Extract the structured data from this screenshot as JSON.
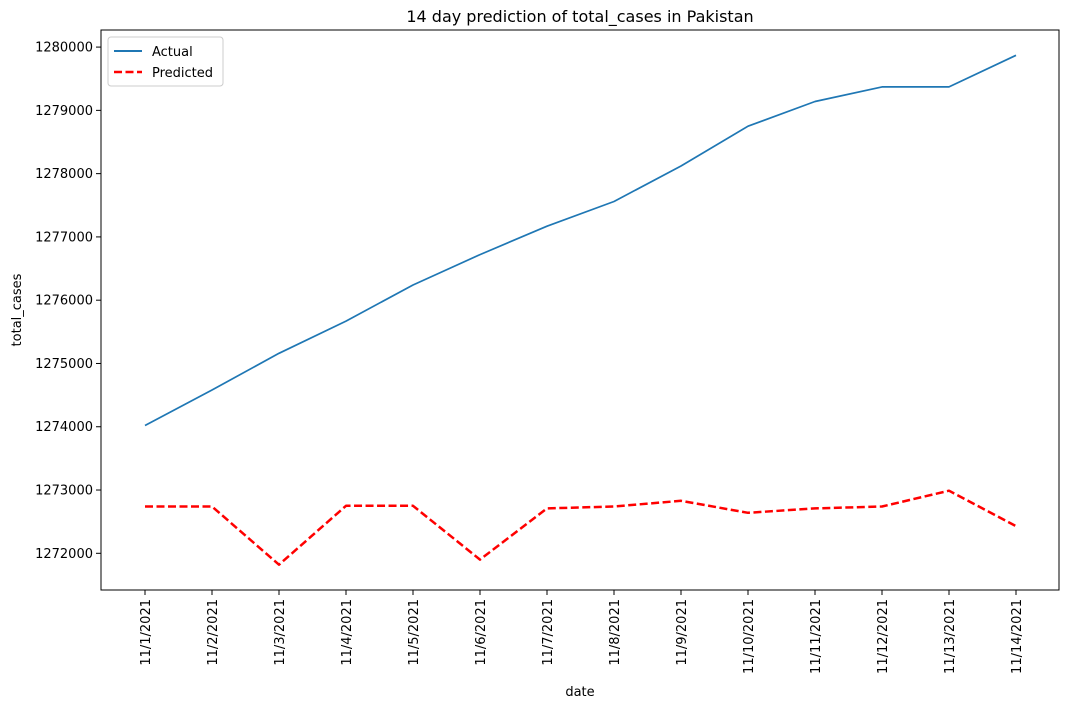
{
  "chart_data": {
    "type": "line",
    "title": "14 day prediction of total_cases in Pakistan",
    "xlabel": "date",
    "ylabel": "total_cases",
    "categories": [
      "11/1/2021",
      "11/2/2021",
      "11/3/2021",
      "11/4/2021",
      "11/5/2021",
      "11/6/2021",
      "11/7/2021",
      "11/8/2021",
      "11/9/2021",
      "11/10/2021",
      "11/11/2021",
      "11/12/2021",
      "11/13/2021",
      "11/14/2021"
    ],
    "ylim": [
      1271420,
      1280270
    ],
    "yticks": [
      1272000,
      1273000,
      1274000,
      1275000,
      1276000,
      1277000,
      1278000,
      1279000,
      1280000
    ],
    "ytick_labels": [
      "1272000",
      "1273000",
      "1274000",
      "1275000",
      "1276000",
      "1277000",
      "1278000",
      "1279000",
      "1280000"
    ],
    "grid": false,
    "legend_position": "top-left",
    "series": [
      {
        "name": "Actual",
        "color": "#1f77b4",
        "style": "solid",
        "values": [
          1274020,
          1274580,
          1275160,
          1275670,
          1276240,
          1276720,
          1277170,
          1277560,
          1278120,
          1278750,
          1279140,
          1279370,
          1279370,
          1279870
        ]
      },
      {
        "name": "Predicted",
        "color": "#ff0000",
        "style": "dashed",
        "values": [
          1272740,
          1272740,
          1271820,
          1272750,
          1272750,
          1271900,
          1272710,
          1272740,
          1272830,
          1272640,
          1272710,
          1272740,
          1272990,
          1272430
        ]
      }
    ]
  }
}
